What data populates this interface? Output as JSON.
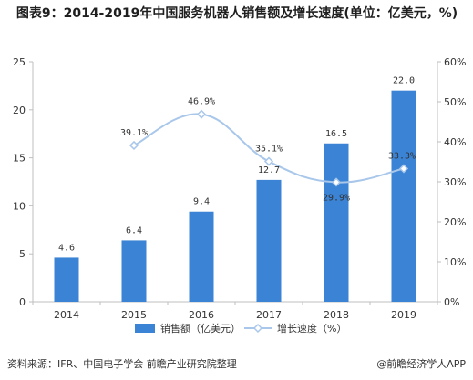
{
  "title": "图表9：2014-2019年中国服务机器人销售额及增长速度(单位：亿美元，%)",
  "source": "资料来源：IFR、中国电子学会 前瞻产业研究院整理",
  "credit": "@前瞻经济学人APP",
  "chart_data": {
    "type": "bar",
    "categories": [
      "2014",
      "2015",
      "2016",
      "2017",
      "2018",
      "2019"
    ],
    "series": [
      {
        "name": "销售额（亿美元）",
        "type": "bar",
        "axis": "left",
        "values": [
          4.6,
          6.4,
          9.4,
          12.7,
          16.5,
          22.0
        ],
        "labels": [
          "4.6",
          "6.4",
          "9.4",
          "12.7",
          "16.5",
          "22.0"
        ],
        "color": "#3b83d4"
      },
      {
        "name": "增长速度（%）",
        "type": "line",
        "axis": "right",
        "values": [
          null,
          39.1,
          46.9,
          35.1,
          29.9,
          33.3
        ],
        "labels": [
          "",
          "39.1%",
          "46.9%",
          "35.1%",
          "29.9%",
          "33.3%"
        ],
        "color": "#a9c7ea"
      }
    ],
    "y_left": {
      "ylim": [
        0,
        25
      ],
      "ticks": [
        "0",
        "5",
        "10",
        "15",
        "20",
        "25"
      ]
    },
    "y_right": {
      "ylim": [
        0,
        60
      ],
      "ticks": [
        "0%",
        "10%",
        "20%",
        "30%",
        "40%",
        "50%",
        "60%"
      ]
    },
    "grid": false,
    "legend": "bottom"
  }
}
